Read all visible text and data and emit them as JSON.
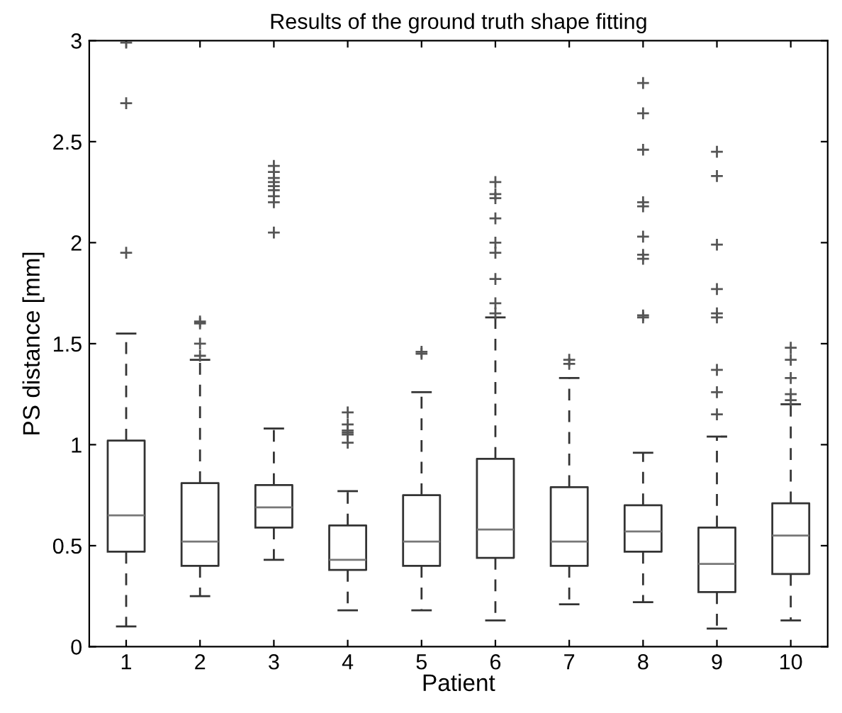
{
  "chart_data": {
    "type": "box",
    "title": "Results of the ground truth shape fitting",
    "xlabel": "Patient",
    "ylabel": "PS distance [mm]",
    "categories": [
      "1",
      "2",
      "3",
      "4",
      "5",
      "6",
      "7",
      "8",
      "9",
      "10"
    ],
    "ylim": [
      0,
      3
    ],
    "yticks": [
      0,
      0.5,
      1,
      1.5,
      2,
      2.5,
      3
    ],
    "grid": false,
    "marker": "cross",
    "color": "#333333",
    "boxes": [
      {
        "low": 0.1,
        "q1": 0.47,
        "median": 0.65,
        "q3": 1.02,
        "high": 1.55,
        "outliers": [
          1.95,
          2.69,
          2.99
        ]
      },
      {
        "low": 0.25,
        "q1": 0.4,
        "median": 0.52,
        "q3": 0.81,
        "high": 1.42,
        "outliers": [
          1.44,
          1.5,
          1.6,
          1.61
        ]
      },
      {
        "low": 0.43,
        "q1": 0.59,
        "median": 0.69,
        "q3": 0.8,
        "high": 1.08,
        "outliers": [
          2.05,
          2.2,
          2.23,
          2.26,
          2.28,
          2.3,
          2.32,
          2.35,
          2.38
        ]
      },
      {
        "low": 0.18,
        "q1": 0.38,
        "median": 0.43,
        "q3": 0.6,
        "high": 0.77,
        "outliers": [
          1.01,
          1.05,
          1.06,
          1.07,
          1.1,
          1.16
        ]
      },
      {
        "low": 0.18,
        "q1": 0.4,
        "median": 0.52,
        "q3": 0.75,
        "high": 1.26,
        "outliers": [
          1.45,
          1.46
        ]
      },
      {
        "low": 0.13,
        "q1": 0.44,
        "median": 0.58,
        "q3": 0.93,
        "high": 1.63,
        "outliers": [
          1.65,
          1.7,
          1.82,
          1.95,
          2.0,
          2.12,
          2.22,
          2.24,
          2.3
        ]
      },
      {
        "low": 0.21,
        "q1": 0.4,
        "median": 0.52,
        "q3": 0.79,
        "high": 1.33,
        "outliers": [
          1.4,
          1.42
        ]
      },
      {
        "low": 0.22,
        "q1": 0.47,
        "median": 0.57,
        "q3": 0.7,
        "high": 0.96,
        "outliers": [
          1.63,
          1.64,
          1.92,
          1.94,
          2.03,
          2.18,
          2.2,
          2.46,
          2.64,
          2.79
        ]
      },
      {
        "low": 0.09,
        "q1": 0.27,
        "median": 0.41,
        "q3": 0.59,
        "high": 1.04,
        "outliers": [
          1.15,
          1.26,
          1.37,
          1.63,
          1.65,
          1.77,
          1.99,
          2.33,
          2.45
        ]
      },
      {
        "low": 0.13,
        "q1": 0.36,
        "median": 0.55,
        "q3": 0.71,
        "high": 1.2,
        "outliers": [
          1.22,
          1.25,
          1.33,
          1.42,
          1.48
        ]
      }
    ]
  }
}
